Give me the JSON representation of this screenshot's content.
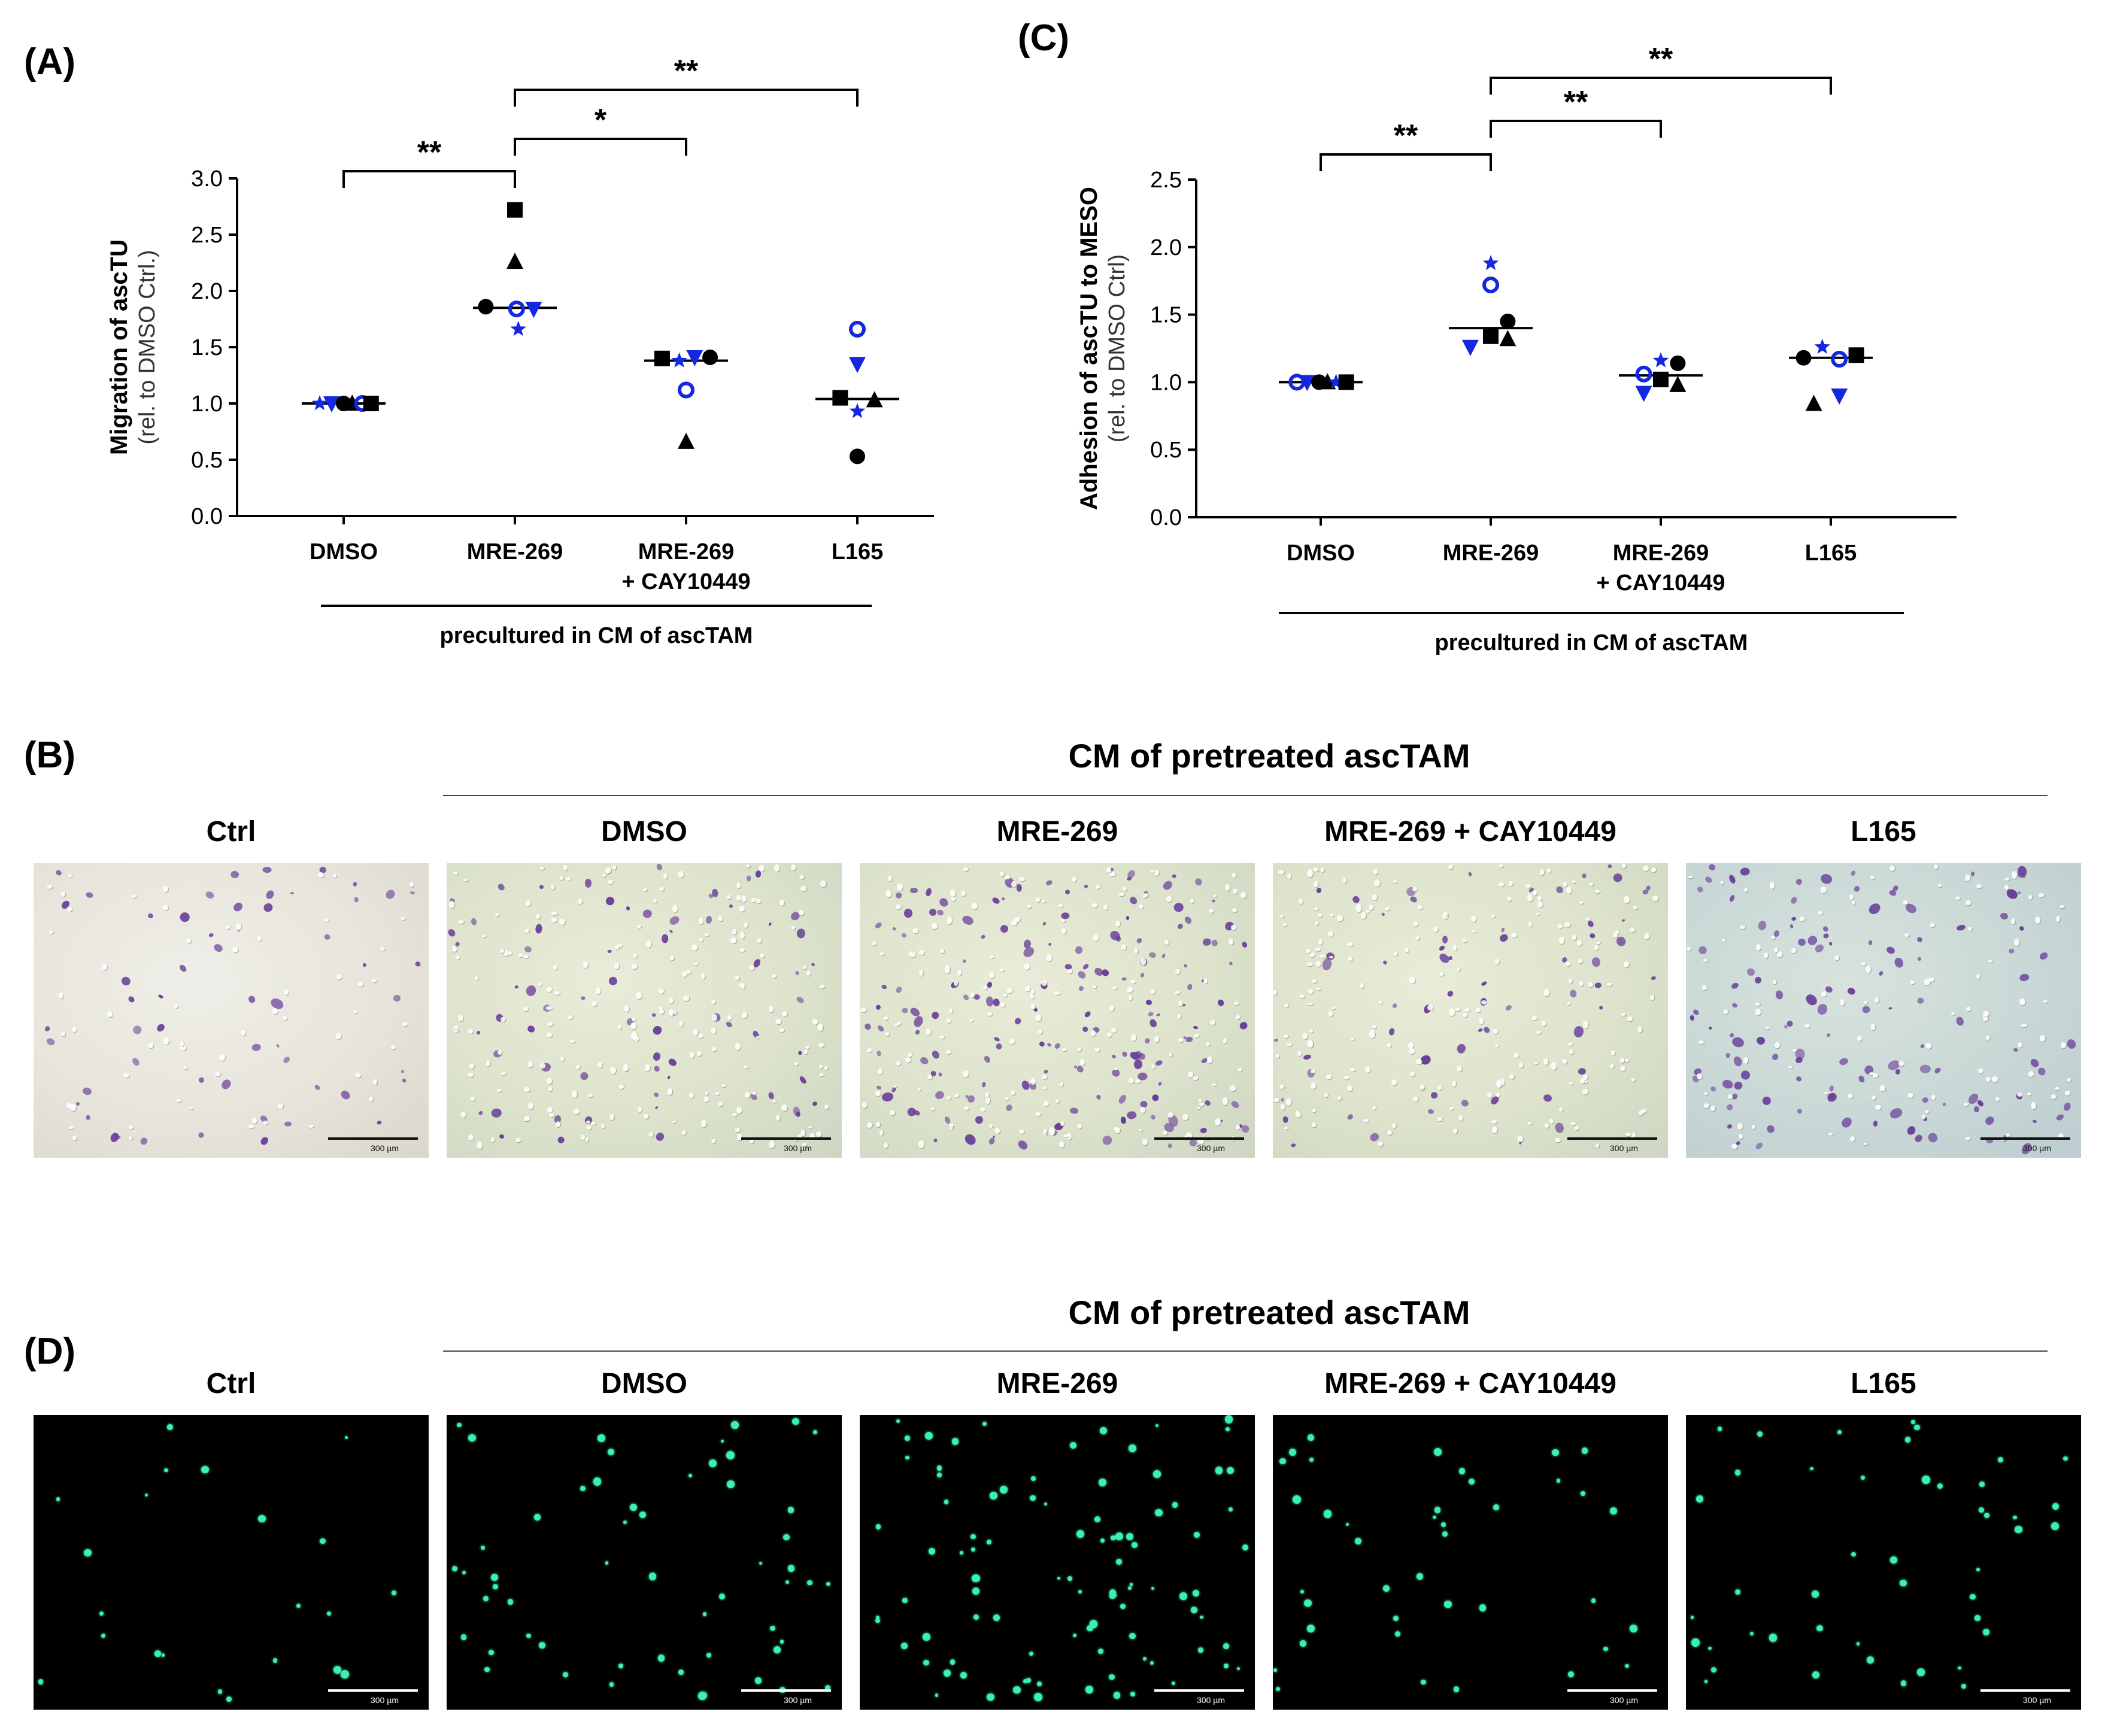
{
  "panels": {
    "A": "(A)",
    "B": "(B)",
    "C": "(C)",
    "D": "(D)"
  },
  "chart_data": [
    {
      "id": "A",
      "type": "scatter",
      "ylabel_main": "Migration of ascTU",
      "ylabel_sub": "(rel. to DMSO Ctrl.)",
      "ylim": [
        0,
        3.0
      ],
      "yticks": [
        0.0,
        0.5,
        1.0,
        1.5,
        2.0,
        2.5,
        3.0
      ],
      "ytick_labels": [
        "0.0",
        "0.5",
        "1.0",
        "1.5",
        "2.0",
        "2.5",
        "3.0"
      ],
      "categories": [
        "DMSO",
        "MRE-269",
        "MRE-269",
        "L165"
      ],
      "category_sublabels": [
        "",
        "",
        "+ CAY10449",
        ""
      ],
      "group_label": "precultured in CM of ascTAM",
      "medians": [
        1.0,
        1.85,
        1.38,
        1.04
      ],
      "points": [
        {
          "cat": 0,
          "off": -0.28,
          "y": 1.0,
          "marker": "star",
          "color": "blue"
        },
        {
          "cat": 0,
          "off": -0.14,
          "y": 1.0,
          "marker": "tri-down",
          "color": "blue"
        },
        {
          "cat": 0,
          "off": 0.0,
          "y": 1.0,
          "marker": "circle",
          "color": "black"
        },
        {
          "cat": 0,
          "off": 0.1,
          "y": 1.0,
          "marker": "triangle",
          "color": "black"
        },
        {
          "cat": 0,
          "off": 0.22,
          "y": 1.0,
          "marker": "circle-open",
          "color": "blue"
        },
        {
          "cat": 0,
          "off": 0.32,
          "y": 1.0,
          "marker": "square",
          "color": "black"
        },
        {
          "cat": 1,
          "off": 0.0,
          "y": 2.72,
          "marker": "square",
          "color": "black"
        },
        {
          "cat": 1,
          "off": 0.0,
          "y": 2.26,
          "marker": "triangle",
          "color": "black"
        },
        {
          "cat": 1,
          "off": -0.34,
          "y": 1.86,
          "marker": "circle",
          "color": "black"
        },
        {
          "cat": 1,
          "off": 0.02,
          "y": 1.84,
          "marker": "circle-open",
          "color": "blue"
        },
        {
          "cat": 1,
          "off": 0.22,
          "y": 1.84,
          "marker": "tri-down",
          "color": "blue"
        },
        {
          "cat": 1,
          "off": 0.04,
          "y": 1.66,
          "marker": "star",
          "color": "blue"
        },
        {
          "cat": 2,
          "off": -0.28,
          "y": 1.4,
          "marker": "square",
          "color": "black"
        },
        {
          "cat": 2,
          "off": -0.08,
          "y": 1.38,
          "marker": "star",
          "color": "blue"
        },
        {
          "cat": 2,
          "off": 0.1,
          "y": 1.41,
          "marker": "tri-down",
          "color": "blue"
        },
        {
          "cat": 2,
          "off": 0.28,
          "y": 1.41,
          "marker": "circle",
          "color": "black"
        },
        {
          "cat": 2,
          "off": 0.0,
          "y": 1.12,
          "marker": "circle-open",
          "color": "blue"
        },
        {
          "cat": 2,
          "off": 0.0,
          "y": 0.66,
          "marker": "triangle",
          "color": "black"
        },
        {
          "cat": 3,
          "off": 0.0,
          "y": 1.66,
          "marker": "circle-open",
          "color": "blue"
        },
        {
          "cat": 3,
          "off": 0.0,
          "y": 1.35,
          "marker": "tri-down",
          "color": "blue"
        },
        {
          "cat": 3,
          "off": -0.2,
          "y": 1.05,
          "marker": "square",
          "color": "black"
        },
        {
          "cat": 3,
          "off": 0.2,
          "y": 1.03,
          "marker": "triangle",
          "color": "black"
        },
        {
          "cat": 3,
          "off": 0.0,
          "y": 0.93,
          "marker": "star",
          "color": "blue"
        },
        {
          "cat": 3,
          "off": 0.0,
          "y": 0.53,
          "marker": "circle",
          "color": "black"
        }
      ],
      "significance": [
        {
          "from": 0,
          "to": 1,
          "label": "**",
          "level": 0
        },
        {
          "from": 1,
          "to": 2,
          "label": "*",
          "level": 1
        },
        {
          "from": 1,
          "to": 3,
          "label": "**",
          "level": 2
        }
      ]
    },
    {
      "id": "C",
      "type": "scatter",
      "ylabel_main": "Adhesion of ascTU to MESO",
      "ylabel_sub": "(rel. to DMSO Ctrl)",
      "ylim": [
        0,
        2.5
      ],
      "yticks": [
        0.0,
        0.5,
        1.0,
        1.5,
        2.0,
        2.5
      ],
      "ytick_labels": [
        "0.0",
        "0.5",
        "1.0",
        "1.5",
        "2.0",
        "2.5"
      ],
      "categories": [
        "DMSO",
        "MRE-269",
        "MRE-269",
        "L165"
      ],
      "category_sublabels": [
        "",
        "",
        "+ CAY10449",
        ""
      ],
      "group_label": "precultured in CM of ascTAM",
      "medians": [
        1.0,
        1.4,
        1.05,
        1.18
      ],
      "points": [
        {
          "cat": 0,
          "off": -0.28,
          "y": 1.0,
          "marker": "circle-open",
          "color": "blue"
        },
        {
          "cat": 0,
          "off": -0.16,
          "y": 1.0,
          "marker": "tri-down",
          "color": "blue"
        },
        {
          "cat": 0,
          "off": -0.02,
          "y": 1.0,
          "marker": "circle",
          "color": "black"
        },
        {
          "cat": 0,
          "off": 0.08,
          "y": 1.0,
          "marker": "triangle",
          "color": "black"
        },
        {
          "cat": 0,
          "off": 0.18,
          "y": 1.0,
          "marker": "star",
          "color": "blue"
        },
        {
          "cat": 0,
          "off": 0.3,
          "y": 1.0,
          "marker": "square",
          "color": "black"
        },
        {
          "cat": 1,
          "off": 0.0,
          "y": 1.88,
          "marker": "star",
          "color": "blue"
        },
        {
          "cat": 1,
          "off": 0.0,
          "y": 1.72,
          "marker": "circle-open",
          "color": "blue"
        },
        {
          "cat": 1,
          "off": 0.2,
          "y": 1.45,
          "marker": "circle",
          "color": "black"
        },
        {
          "cat": 1,
          "off": 0.0,
          "y": 1.34,
          "marker": "square",
          "color": "black"
        },
        {
          "cat": 1,
          "off": -0.24,
          "y": 1.26,
          "marker": "tri-down",
          "color": "blue"
        },
        {
          "cat": 1,
          "off": 0.2,
          "y": 1.32,
          "marker": "triangle",
          "color": "black"
        },
        {
          "cat": 2,
          "off": -0.2,
          "y": 1.06,
          "marker": "circle-open",
          "color": "blue"
        },
        {
          "cat": 2,
          "off": 0.0,
          "y": 1.16,
          "marker": "star",
          "color": "blue"
        },
        {
          "cat": 2,
          "off": 0.2,
          "y": 1.14,
          "marker": "circle",
          "color": "black"
        },
        {
          "cat": 2,
          "off": -0.2,
          "y": 0.92,
          "marker": "tri-down",
          "color": "blue"
        },
        {
          "cat": 2,
          "off": 0.0,
          "y": 1.02,
          "marker": "square",
          "color": "black"
        },
        {
          "cat": 2,
          "off": 0.2,
          "y": 0.98,
          "marker": "triangle",
          "color": "black"
        },
        {
          "cat": 3,
          "off": -0.32,
          "y": 1.18,
          "marker": "circle",
          "color": "black"
        },
        {
          "cat": 3,
          "off": -0.1,
          "y": 1.26,
          "marker": "star",
          "color": "blue"
        },
        {
          "cat": 3,
          "off": 0.1,
          "y": 1.17,
          "marker": "circle-open",
          "color": "blue"
        },
        {
          "cat": 3,
          "off": 0.3,
          "y": 1.2,
          "marker": "square",
          "color": "black"
        },
        {
          "cat": 3,
          "off": -0.2,
          "y": 0.84,
          "marker": "triangle",
          "color": "black"
        },
        {
          "cat": 3,
          "off": 0.1,
          "y": 0.9,
          "marker": "tri-down",
          "color": "blue"
        }
      ],
      "significance": [
        {
          "from": 0,
          "to": 1,
          "label": "**",
          "level": 0
        },
        {
          "from": 1,
          "to": 2,
          "label": "**",
          "level": 1
        },
        {
          "from": 1,
          "to": 3,
          "label": "**",
          "level": 2
        }
      ]
    }
  ],
  "images_B": {
    "header": "CM of pretreated ascTAM",
    "labels": [
      "Ctrl",
      "DMSO",
      "MRE-269",
      "MRE-269 + CAY10449",
      "L165"
    ],
    "scale": "300 µm"
  },
  "images_D": {
    "header": "CM of pretreated ascTAM",
    "labels": [
      "Ctrl",
      "DMSO",
      "MRE-269",
      "MRE-269 + CAY10449",
      "L165"
    ],
    "scale": "300 µm"
  },
  "colors": {
    "blue": "#1428e0",
    "black": "#000000",
    "stain": "#6a3f9a",
    "fluor": "#3bf0b4"
  }
}
